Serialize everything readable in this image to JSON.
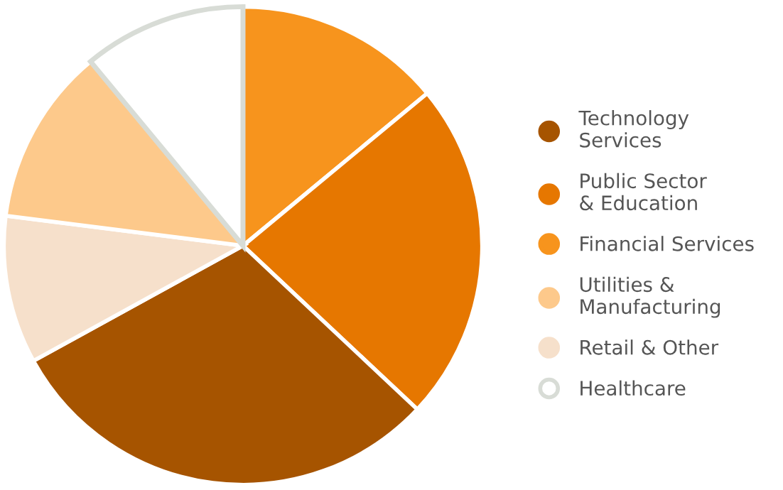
{
  "chart_data": {
    "type": "pie",
    "categories": [
      "Technology\nServices",
      "Public Sector\n& Education",
      "Financial Services",
      "Utilities &\nManufacturing",
      "Retail & Other",
      "Healthcare"
    ],
    "values": [
      30,
      23,
      14,
      12,
      10,
      11
    ],
    "colors": [
      "#a65400",
      "#e67700",
      "#f7941d",
      "#fdc98b",
      "#f6e0cb",
      "#ffffff"
    ],
    "legend": "right"
  }
}
